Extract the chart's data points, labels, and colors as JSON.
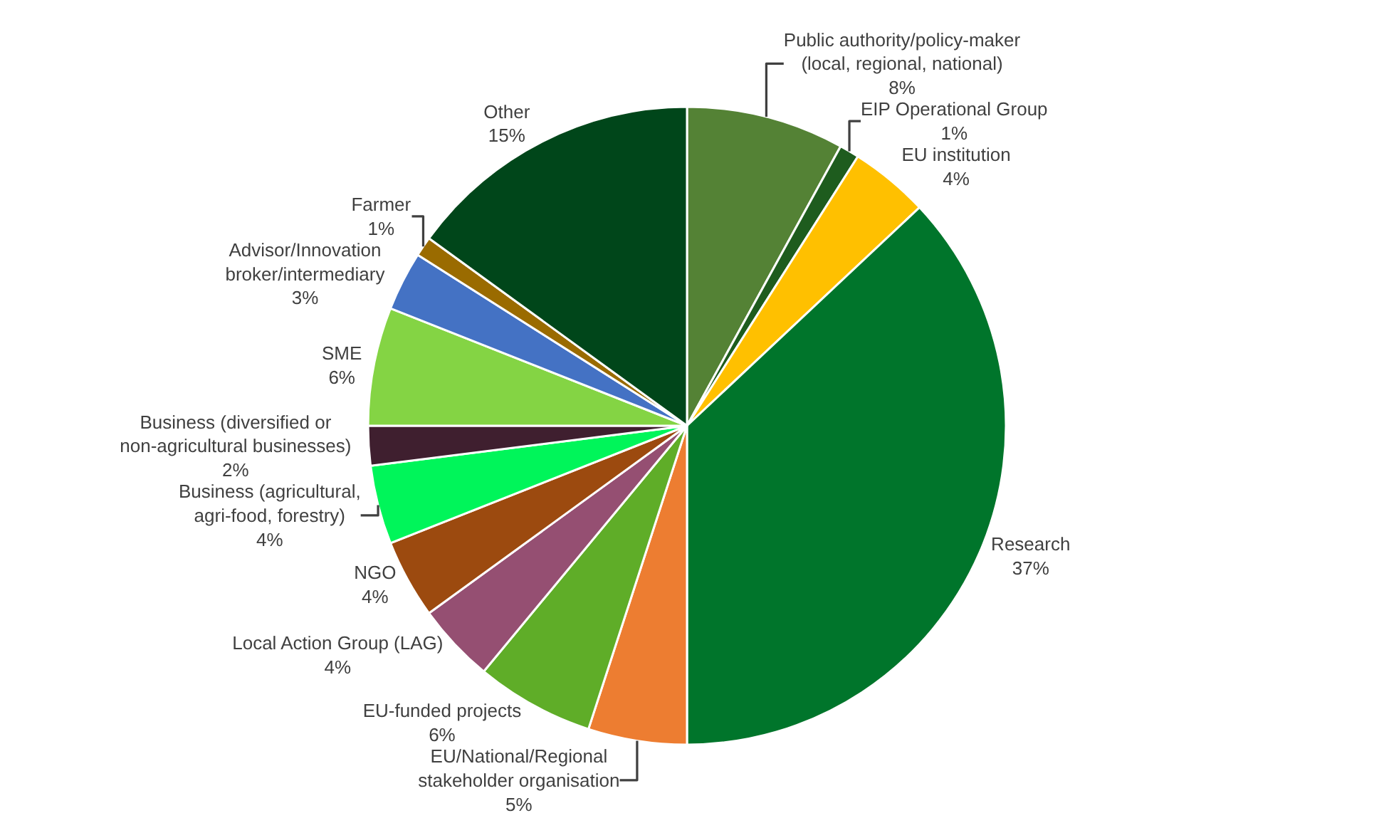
{
  "chart_data": {
    "type": "pie",
    "categories": [
      "Public authority/policy-maker (local, regional, national)",
      "EIP Operational Group",
      "EU institution",
      "Research",
      "EU/National/Regional stakeholder organisation",
      "EU-funded projects",
      "Local Action Group (LAG)",
      "NGO",
      "Business (agricultural, agri-food, forestry)",
      "Business (diversified or non-agricultural businesses)",
      "SME",
      "Advisor/Innovation broker/intermediary",
      "Farmer",
      "Other"
    ],
    "values": [
      8,
      1,
      4,
      37,
      5,
      6,
      4,
      4,
      4,
      2,
      6,
      3,
      1,
      15
    ],
    "value_labels": [
      "8%",
      "1%",
      "4%",
      "37%",
      "5%",
      "6%",
      "4%",
      "4%",
      "4%",
      "2%",
      "6%",
      "3%",
      "1%",
      "15%"
    ],
    "colors": [
      "#548235",
      "#1e5c1e",
      "#ffc000",
      "#00752b",
      "#ed7d31",
      "#5fad28",
      "#954f72",
      "#9c4a0f",
      "#00f55a",
      "#3f1f2f",
      "#84d444",
      "#4472c4",
      "#9a6b00",
      "#00461a"
    ],
    "legend": false
  }
}
